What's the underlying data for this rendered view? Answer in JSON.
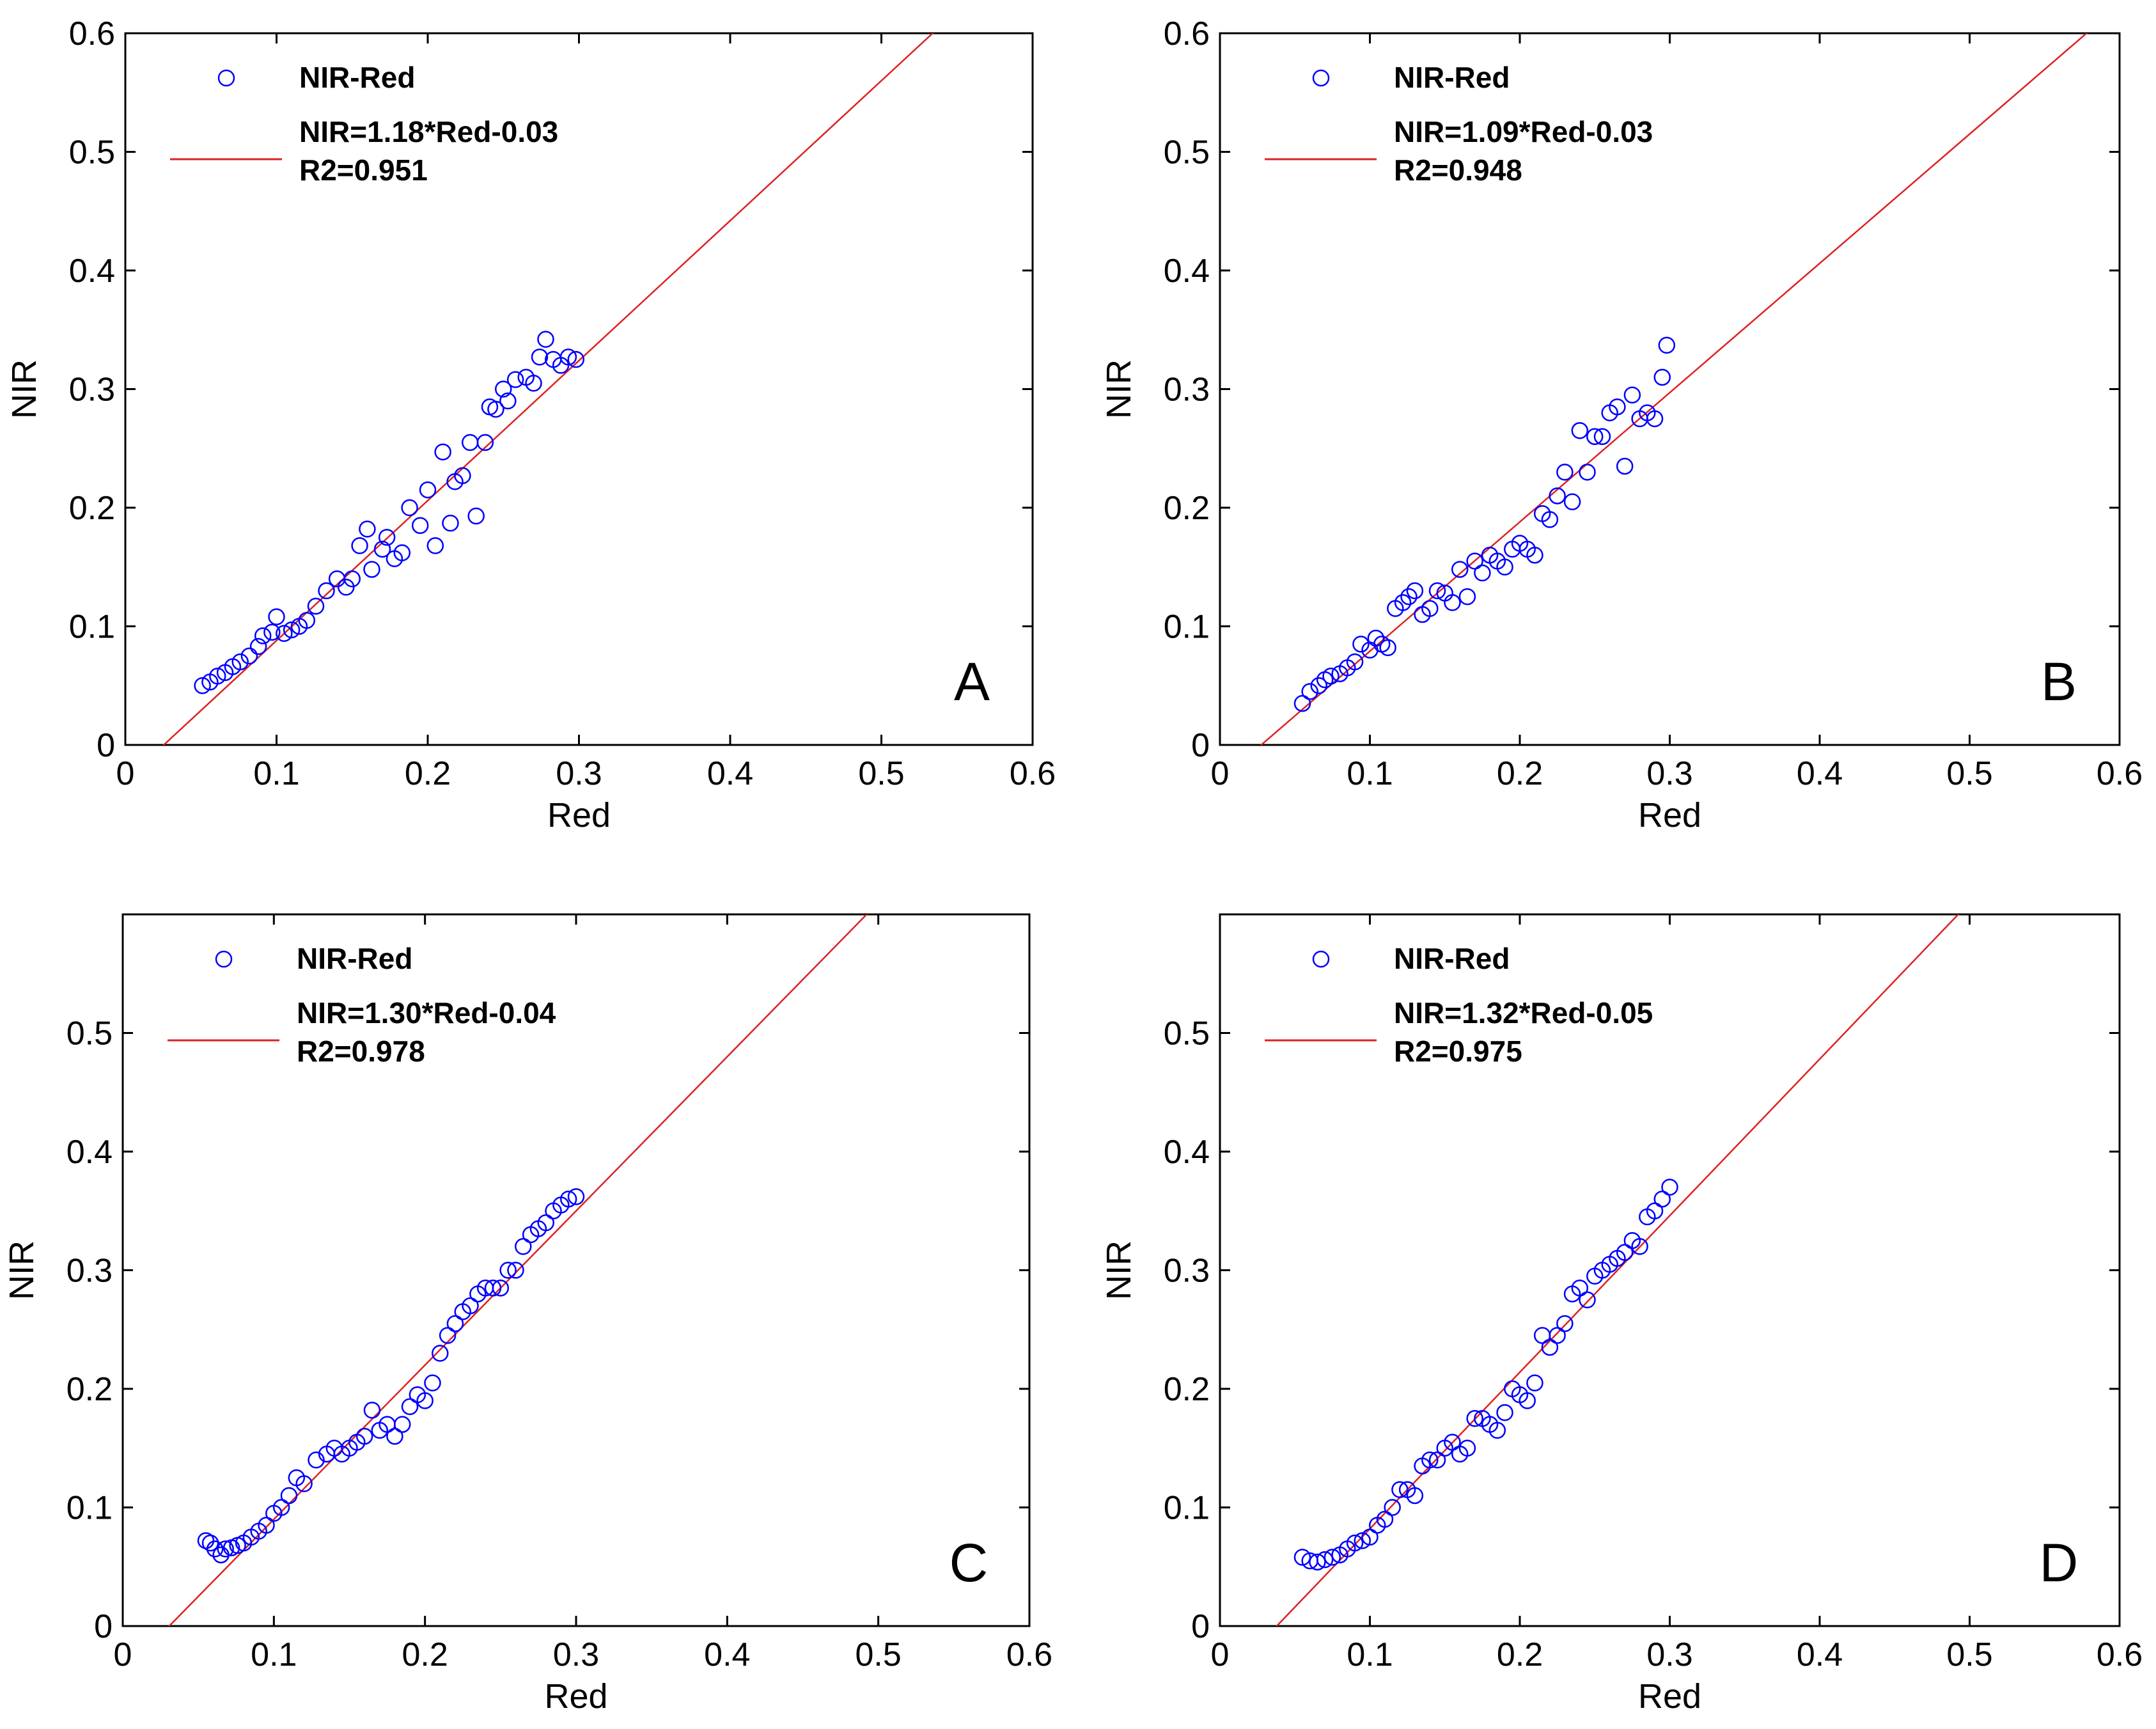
{
  "colors": {
    "marker": "#0000ff",
    "fit_line": "#dd2222",
    "axes": "#000000",
    "background": "#ffffff"
  },
  "chart_data": [
    {
      "panel": "A",
      "type": "scatter",
      "xlabel": "Red",
      "ylabel": "NIR",
      "xlim": [
        0,
        0.6
      ],
      "ylim": [
        0,
        0.6
      ],
      "xticks": [
        "0",
        "0.1",
        "0.2",
        "0.3",
        "0.4",
        "0.5",
        "0.6"
      ],
      "yticks": [
        "0",
        "0.1",
        "0.2",
        "0.3",
        "0.4",
        "0.5",
        "0.6"
      ],
      "legend": {
        "placement": "top-left",
        "series_label": "NIR-Red",
        "fit_label": "NIR=1.18*Red-0.03",
        "r2_label": "R2=0.951"
      },
      "fit": {
        "slope": 1.18,
        "intercept": -0.03
      },
      "series": [
        {
          "name": "NIR-Red",
          "x": [
            0.051,
            0.056,
            0.061,
            0.066,
            0.071,
            0.076,
            0.082,
            0.088,
            0.091,
            0.097,
            0.1,
            0.105,
            0.11,
            0.115,
            0.12,
            0.126,
            0.133,
            0.14,
            0.146,
            0.15,
            0.155,
            0.16,
            0.163,
            0.17,
            0.173,
            0.178,
            0.183,
            0.188,
            0.195,
            0.2,
            0.205,
            0.21,
            0.215,
            0.218,
            0.223,
            0.228,
            0.232,
            0.238,
            0.241,
            0.245,
            0.25,
            0.253,
            0.258,
            0.265,
            0.27,
            0.274,
            0.278,
            0.283,
            0.288,
            0.293,
            0.298
          ],
          "y": [
            0.05,
            0.053,
            0.058,
            0.061,
            0.066,
            0.07,
            0.075,
            0.083,
            0.092,
            0.095,
            0.108,
            0.094,
            0.097,
            0.1,
            0.105,
            0.117,
            0.13,
            0.14,
            0.133,
            0.14,
            0.168,
            0.182,
            0.148,
            0.165,
            0.175,
            0.157,
            0.162,
            0.2,
            0.185,
            0.215,
            0.168,
            0.247,
            0.187,
            0.222,
            0.227,
            0.255,
            0.193,
            0.255,
            0.285,
            0.283,
            0.3,
            0.29,
            0.308,
            0.31,
            0.305,
            0.327,
            0.342,
            0.325,
            0.32,
            0.327,
            0.325
          ]
        }
      ]
    },
    {
      "panel": "B",
      "type": "scatter",
      "xlabel": "Red",
      "ylabel": "NIR",
      "xlim": [
        0,
        0.6
      ],
      "ylim": [
        0,
        0.6
      ],
      "xticks": [
        "0",
        "0.1",
        "0.2",
        "0.3",
        "0.4",
        "0.5",
        "0.6"
      ],
      "yticks": [
        "0",
        "0.1",
        "0.2",
        "0.3",
        "0.4",
        "0.5",
        "0.6"
      ],
      "legend": {
        "placement": "top-left",
        "series_label": "NIR-Red",
        "fit_label": "NIR=1.09*Red-0.03",
        "r2_label": "R2=0.948"
      },
      "fit": {
        "slope": 1.09,
        "intercept": -0.03
      },
      "series": [
        {
          "name": "NIR-Red",
          "x": [
            0.055,
            0.06,
            0.066,
            0.07,
            0.074,
            0.08,
            0.085,
            0.09,
            0.094,
            0.1,
            0.104,
            0.108,
            0.112,
            0.117,
            0.122,
            0.126,
            0.13,
            0.135,
            0.14,
            0.145,
            0.15,
            0.155,
            0.16,
            0.165,
            0.17,
            0.175,
            0.18,
            0.185,
            0.19,
            0.195,
            0.2,
            0.205,
            0.21,
            0.215,
            0.22,
            0.225,
            0.23,
            0.235,
            0.24,
            0.245,
            0.25,
            0.255,
            0.26,
            0.265,
            0.27,
            0.275,
            0.28,
            0.285,
            0.29,
            0.295,
            0.298
          ],
          "y": [
            0.035,
            0.045,
            0.05,
            0.055,
            0.058,
            0.06,
            0.065,
            0.07,
            0.085,
            0.08,
            0.09,
            0.085,
            0.082,
            0.115,
            0.12,
            0.125,
            0.13,
            0.11,
            0.115,
            0.13,
            0.128,
            0.12,
            0.148,
            0.125,
            0.155,
            0.145,
            0.16,
            0.155,
            0.15,
            0.165,
            0.17,
            0.165,
            0.16,
            0.195,
            0.19,
            0.21,
            0.23,
            0.205,
            0.265,
            0.23,
            0.26,
            0.26,
            0.28,
            0.285,
            0.235,
            0.295,
            0.275,
            0.28,
            0.275,
            0.31,
            0.337
          ]
        }
      ]
    },
    {
      "panel": "C",
      "type": "scatter",
      "xlabel": "Red",
      "ylabel": "NIR",
      "xlim": [
        0,
        0.6
      ],
      "ylim": [
        0,
        0.6
      ],
      "xticks": [
        "0",
        "0.1",
        "0.2",
        "0.3",
        "0.4",
        "0.5",
        "0.6"
      ],
      "yticks": [
        "0",
        "0.1",
        "0.2",
        "0.3",
        "0.4",
        "0.5"
      ],
      "legend": {
        "placement": "top-left",
        "series_label": "NIR-Red",
        "fit_label": "NIR=1.30*Red-0.04",
        "r2_label": "R2=0.978"
      },
      "fit": {
        "slope": 1.3,
        "intercept": -0.04
      },
      "series": [
        {
          "name": "NIR-Red",
          "x": [
            0.055,
            0.058,
            0.061,
            0.065,
            0.068,
            0.072,
            0.076,
            0.08,
            0.085,
            0.09,
            0.095,
            0.1,
            0.105,
            0.11,
            0.115,
            0.12,
            0.128,
            0.135,
            0.14,
            0.145,
            0.15,
            0.155,
            0.16,
            0.165,
            0.17,
            0.175,
            0.18,
            0.185,
            0.19,
            0.195,
            0.2,
            0.205,
            0.21,
            0.215,
            0.22,
            0.225,
            0.23,
            0.235,
            0.24,
            0.245,
            0.25,
            0.255,
            0.26,
            0.265,
            0.27,
            0.275,
            0.28,
            0.285,
            0.29,
            0.295,
            0.3
          ],
          "y": [
            0.072,
            0.07,
            0.065,
            0.06,
            0.065,
            0.066,
            0.068,
            0.07,
            0.075,
            0.08,
            0.085,
            0.095,
            0.1,
            0.11,
            0.125,
            0.12,
            0.14,
            0.145,
            0.15,
            0.145,
            0.15,
            0.155,
            0.16,
            0.182,
            0.165,
            0.17,
            0.16,
            0.17,
            0.185,
            0.195,
            0.19,
            0.205,
            0.23,
            0.245,
            0.255,
            0.265,
            0.27,
            0.28,
            0.285,
            0.285,
            0.285,
            0.3,
            0.3,
            0.32,
            0.33,
            0.335,
            0.34,
            0.35,
            0.355,
            0.36,
            0.362
          ]
        }
      ]
    },
    {
      "panel": "D",
      "type": "scatter",
      "xlabel": "Red",
      "ylabel": "NIR",
      "xlim": [
        0,
        0.6
      ],
      "ylim": [
        0,
        0.6
      ],
      "xticks": [
        "0",
        "0.1",
        "0.2",
        "0.3",
        "0.4",
        "0.5",
        "0.6"
      ],
      "yticks": [
        "0",
        "0.1",
        "0.2",
        "0.3",
        "0.4",
        "0.5"
      ],
      "legend": {
        "placement": "top-left",
        "series_label": "NIR-Red",
        "fit_label": "NIR=1.32*Red-0.05",
        "r2_label": "R2=0.975"
      },
      "fit": {
        "slope": 1.32,
        "intercept": -0.05
      },
      "series": [
        {
          "name": "NIR-Red",
          "x": [
            0.055,
            0.06,
            0.065,
            0.07,
            0.075,
            0.08,
            0.085,
            0.09,
            0.095,
            0.1,
            0.105,
            0.11,
            0.115,
            0.12,
            0.125,
            0.13,
            0.135,
            0.14,
            0.145,
            0.15,
            0.155,
            0.16,
            0.165,
            0.17,
            0.175,
            0.18,
            0.185,
            0.19,
            0.195,
            0.2,
            0.205,
            0.21,
            0.215,
            0.22,
            0.225,
            0.23,
            0.235,
            0.24,
            0.245,
            0.25,
            0.255,
            0.26,
            0.265,
            0.27,
            0.275,
            0.28,
            0.285,
            0.29,
            0.295,
            0.3
          ],
          "y": [
            0.058,
            0.055,
            0.054,
            0.056,
            0.058,
            0.06,
            0.065,
            0.07,
            0.072,
            0.075,
            0.085,
            0.09,
            0.1,
            0.115,
            0.115,
            0.11,
            0.135,
            0.14,
            0.14,
            0.15,
            0.155,
            0.145,
            0.15,
            0.175,
            0.175,
            0.17,
            0.165,
            0.18,
            0.2,
            0.195,
            0.19,
            0.205,
            0.245,
            0.235,
            0.245,
            0.255,
            0.28,
            0.285,
            0.275,
            0.295,
            0.3,
            0.305,
            0.31,
            0.315,
            0.325,
            0.32,
            0.345,
            0.35,
            0.36,
            0.37
          ]
        }
      ]
    }
  ]
}
